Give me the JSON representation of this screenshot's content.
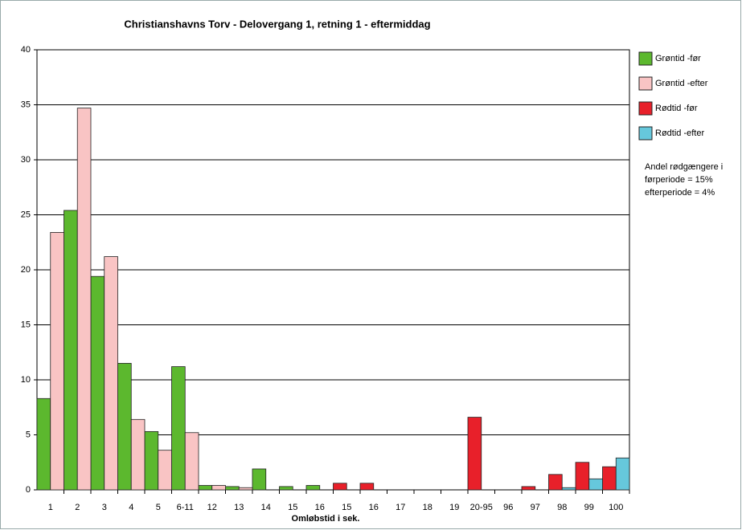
{
  "chart_data": {
    "type": "bar",
    "title": "Christianshavns Torv - Delovergang 1, retning 1 - eftermiddag",
    "xlabel": "Omløbstid i sek.",
    "categories": [
      "1",
      "2",
      "3",
      "4",
      "5",
      "6-11",
      "12",
      "13",
      "14",
      "15",
      "16",
      "15",
      "16",
      "17",
      "18",
      "19",
      "20-95",
      "96",
      "97",
      "98",
      "99",
      "100"
    ],
    "series": [
      {
        "name": "Grøntid -før",
        "color": "#5cb82e",
        "values": [
          8.3,
          25.4,
          19.4,
          11.5,
          5.3,
          11.2,
          0.4,
          0.3,
          1.9,
          0.3,
          0.4,
          null,
          null,
          null,
          null,
          null,
          null,
          null,
          null,
          null,
          null,
          null
        ]
      },
      {
        "name": "Grøntid -efter",
        "color": "#f9c4c4",
        "values": [
          23.4,
          34.7,
          21.2,
          6.4,
          3.6,
          5.2,
          0.4,
          0.2,
          0,
          0,
          0,
          null,
          null,
          null,
          null,
          null,
          null,
          null,
          null,
          null,
          null,
          null
        ]
      },
      {
        "name": "Rødtid -før",
        "color": "#e8202a",
        "values": [
          null,
          null,
          null,
          null,
          null,
          null,
          null,
          null,
          null,
          null,
          null,
          0.6,
          0.6,
          0,
          0,
          0,
          6.6,
          0,
          0.3,
          1.4,
          2.5,
          2.1
        ]
      },
      {
        "name": "Rødtid -efter",
        "color": "#66c8dc",
        "values": [
          null,
          null,
          null,
          null,
          null,
          null,
          null,
          null,
          null,
          null,
          null,
          0,
          0,
          0,
          0,
          0,
          0,
          0,
          0,
          0.2,
          1.0,
          2.9
        ]
      }
    ],
    "ylim": [
      0,
      40
    ],
    "yticks": [
      0,
      5,
      10,
      15,
      20,
      25,
      30,
      35,
      40
    ],
    "grid": true,
    "annotation": [
      "Andel rødgængere i",
      "førperiode = 15%",
      "efterperiode = 4%"
    ]
  }
}
